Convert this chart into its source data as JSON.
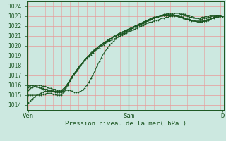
{
  "bg_color": "#cce8e0",
  "grid_color": "#e89898",
  "line_color": "#1a5520",
  "marker_color": "#1a5520",
  "ylim": [
    1013.5,
    1024.5
  ],
  "yticks": [
    1014,
    1015,
    1016,
    1017,
    1018,
    1019,
    1020,
    1021,
    1022,
    1023,
    1024
  ],
  "xlabel": "Pression niveau de la mer( hPa )",
  "xtick_labels": [
    "Ven",
    "Sam",
    "D"
  ],
  "xtick_positions": [
    0,
    48,
    93
  ],
  "total_points": 94,
  "sam_x": 48,
  "lines": [
    {
      "y": [
        1014.2,
        1014.4,
        1014.6,
        1014.8,
        1015.0,
        1015.1,
        1015.2,
        1015.3,
        1015.4,
        1015.4,
        1015.4,
        1015.4,
        1015.4,
        1015.3,
        1015.3,
        1015.3,
        1015.3,
        1015.5,
        1015.8,
        1016.1,
        1016.4,
        1016.8,
        1017.1,
        1017.4,
        1017.7,
        1018.0,
        1018.2,
        1018.5,
        1018.7,
        1018.9,
        1019.1,
        1019.3,
        1019.5,
        1019.7,
        1019.8,
        1020.0,
        1020.1,
        1020.3,
        1020.4,
        1020.5,
        1020.6,
        1020.7,
        1020.8,
        1020.9,
        1021.0,
        1021.1,
        1021.2,
        1021.3,
        1021.4,
        1021.5,
        1021.6,
        1021.7,
        1021.8,
        1021.9,
        1022.0,
        1022.1,
        1022.2,
        1022.3,
        1022.4,
        1022.4,
        1022.5,
        1022.6,
        1022.6,
        1022.7,
        1022.8,
        1022.8,
        1022.9,
        1022.9,
        1023.0,
        1023.0,
        1023.1,
        1023.1,
        1023.1,
        1023.2,
        1023.2,
        1023.2,
        1023.1,
        1023.1,
        1023.0,
        1022.9,
        1022.8,
        1022.8,
        1022.7,
        1022.7,
        1022.8,
        1022.8,
        1022.9,
        1022.9,
        1023.0,
        1023.0,
        1023.1,
        1023.1,
        1023.1,
        1023.0
      ]
    },
    {
      "y": [
        1015.5,
        1015.7,
        1015.8,
        1015.9,
        1016.0,
        1016.0,
        1016.0,
        1015.9,
        1015.9,
        1015.8,
        1015.7,
        1015.7,
        1015.6,
        1015.6,
        1015.5,
        1015.5,
        1015.5,
        1015.7,
        1015.9,
        1016.2,
        1016.6,
        1016.9,
        1017.2,
        1017.5,
        1017.8,
        1018.1,
        1018.3,
        1018.6,
        1018.8,
        1019.0,
        1019.2,
        1019.4,
        1019.6,
        1019.8,
        1019.9,
        1020.1,
        1020.2,
        1020.4,
        1020.5,
        1020.6,
        1020.8,
        1020.9,
        1021.0,
        1021.1,
        1021.2,
        1021.3,
        1021.4,
        1021.5,
        1021.6,
        1021.7,
        1021.8,
        1021.9,
        1022.0,
        1022.1,
        1022.2,
        1022.3,
        1022.4,
        1022.5,
        1022.6,
        1022.7,
        1022.8,
        1022.9,
        1023.0,
        1023.1,
        1023.1,
        1023.2,
        1023.2,
        1023.3,
        1023.3,
        1023.3,
        1023.3,
        1023.3,
        1023.3,
        1023.2,
        1023.2,
        1023.1,
        1023.0,
        1022.9,
        1022.9,
        1022.8,
        1022.8,
        1022.8,
        1022.8,
        1022.9,
        1022.9,
        1023.0,
        1023.0,
        1023.1,
        1023.1,
        1023.1,
        1023.1,
        1023.1,
        1023.0,
        1023.0
      ]
    },
    {
      "y": [
        1015.8,
        1016.0,
        1016.0,
        1016.0,
        1015.9,
        1015.8,
        1015.8,
        1015.7,
        1015.6,
        1015.6,
        1015.5,
        1015.5,
        1015.4,
        1015.4,
        1015.3,
        1015.3,
        1015.3,
        1015.4,
        1015.7,
        1016.0,
        1016.4,
        1016.8,
        1017.1,
        1017.4,
        1017.7,
        1018.0,
        1018.3,
        1018.5,
        1018.8,
        1019.0,
        1019.2,
        1019.4,
        1019.6,
        1019.8,
        1020.0,
        1020.1,
        1020.3,
        1020.4,
        1020.5,
        1020.7,
        1020.8,
        1020.9,
        1021.0,
        1021.2,
        1021.3,
        1021.4,
        1021.5,
        1021.6,
        1021.7,
        1021.8,
        1021.9,
        1022.0,
        1022.1,
        1022.2,
        1022.3,
        1022.4,
        1022.5,
        1022.6,
        1022.7,
        1022.8,
        1022.9,
        1022.9,
        1023.0,
        1023.0,
        1023.1,
        1023.1,
        1023.2,
        1023.2,
        1023.2,
        1023.2,
        1023.1,
        1023.1,
        1023.0,
        1023.0,
        1022.9,
        1022.8,
        1022.7,
        1022.7,
        1022.6,
        1022.6,
        1022.5,
        1022.5,
        1022.5,
        1022.5,
        1022.5,
        1022.6,
        1022.6,
        1022.7,
        1022.8,
        1022.8,
        1022.9,
        1022.9,
        1023.0,
        1023.0
      ]
    },
    {
      "y": [
        1016.0,
        1016.0,
        1016.0,
        1015.9,
        1015.8,
        1015.8,
        1015.7,
        1015.6,
        1015.6,
        1015.5,
        1015.5,
        1015.5,
        1015.4,
        1015.4,
        1015.4,
        1015.4,
        1015.4,
        1015.6,
        1015.9,
        1016.2,
        1016.5,
        1016.9,
        1017.2,
        1017.5,
        1017.8,
        1018.1,
        1018.3,
        1018.6,
        1018.8,
        1019.0,
        1019.3,
        1019.5,
        1019.7,
        1019.8,
        1020.0,
        1020.1,
        1020.3,
        1020.4,
        1020.6,
        1020.7,
        1020.8,
        1021.0,
        1021.1,
        1021.2,
        1021.3,
        1021.4,
        1021.5,
        1021.6,
        1021.7,
        1021.8,
        1021.9,
        1022.0,
        1022.1,
        1022.2,
        1022.3,
        1022.4,
        1022.5,
        1022.6,
        1022.7,
        1022.8,
        1022.9,
        1022.9,
        1023.0,
        1023.0,
        1023.1,
        1023.1,
        1023.1,
        1023.1,
        1023.1,
        1023.1,
        1023.0,
        1023.0,
        1022.9,
        1022.9,
        1022.8,
        1022.7,
        1022.7,
        1022.6,
        1022.5,
        1022.5,
        1022.5,
        1022.5,
        1022.5,
        1022.5,
        1022.5,
        1022.6,
        1022.7,
        1022.7,
        1022.8,
        1022.9,
        1022.9,
        1023.0,
        1023.0,
        1022.9
      ]
    },
    {
      "y": [
        1015.0,
        1015.0,
        1015.0,
        1015.0,
        1015.0,
        1015.0,
        1015.0,
        1015.1,
        1015.1,
        1015.2,
        1015.2,
        1015.2,
        1015.1,
        1015.1,
        1015.0,
        1015.0,
        1015.0,
        1015.3,
        1015.5,
        1015.5,
        1015.5,
        1015.4,
        1015.3,
        1015.3,
        1015.3,
        1015.4,
        1015.5,
        1015.7,
        1016.0,
        1016.3,
        1016.7,
        1017.1,
        1017.5,
        1018.0,
        1018.4,
        1018.8,
        1019.2,
        1019.5,
        1019.8,
        1020.1,
        1020.3,
        1020.5,
        1020.7,
        1020.9,
        1021.0,
        1021.2,
        1021.3,
        1021.4,
        1021.5,
        1021.6,
        1021.8,
        1021.9,
        1022.0,
        1022.1,
        1022.2,
        1022.3,
        1022.4,
        1022.5,
        1022.6,
        1022.7,
        1022.8,
        1022.9,
        1022.9,
        1023.0,
        1023.0,
        1023.1,
        1023.1,
        1023.1,
        1023.1,
        1023.1,
        1023.1,
        1023.0,
        1023.0,
        1022.9,
        1022.9,
        1022.8,
        1022.7,
        1022.7,
        1022.6,
        1022.5,
        1022.5,
        1022.4,
        1022.4,
        1022.4,
        1022.5,
        1022.5,
        1022.6,
        1022.7,
        1022.8,
        1022.9,
        1023.0,
        1023.0,
        1023.1,
        1023.0
      ]
    }
  ]
}
